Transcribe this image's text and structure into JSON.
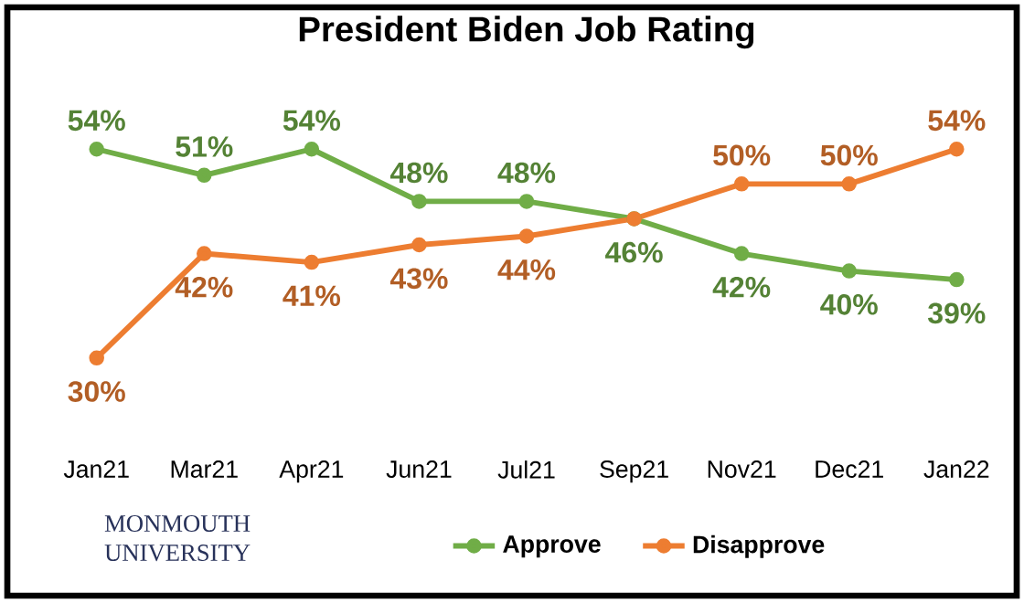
{
  "chart_data": {
    "type": "line",
    "title": "President Biden Job Rating",
    "categories": [
      "Jan21",
      "Mar21",
      "Apr21",
      "Jun21",
      "Jul21",
      "Sep21",
      "Nov21",
      "Dec21",
      "Jan22"
    ],
    "series": [
      {
        "name": "Approve",
        "color": "#70ad47",
        "values": [
          54,
          51,
          54,
          48,
          48,
          46,
          42,
          40,
          39
        ],
        "value_labels": [
          "54%",
          "51%",
          "54%",
          "48%",
          "48%",
          "46%",
          "42%",
          "40%",
          "39%"
        ]
      },
      {
        "name": "Disapprove",
        "color": "#ed7d31",
        "values": [
          30,
          42,
          41,
          43,
          44,
          46,
          50,
          50,
          54
        ],
        "value_labels": [
          "30%",
          "42%",
          "41%",
          "43%",
          "44%",
          null,
          "50%",
          "50%",
          "54%"
        ]
      }
    ],
    "marker": "circle",
    "legend": "bottom",
    "annotations": [
      "MONMOUTH UNIVERSITY"
    ]
  }
}
